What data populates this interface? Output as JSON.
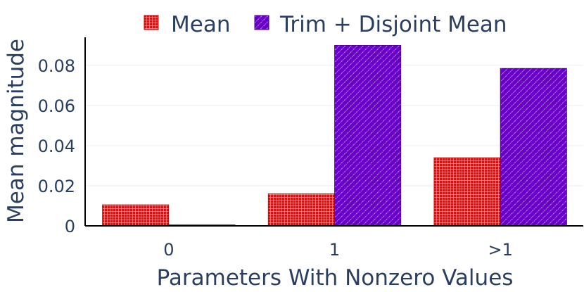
{
  "chart_data": {
    "type": "bar",
    "title": "",
    "xlabel": "Parameters With Nonzero Values",
    "ylabel": "Mean magnitude",
    "categories": [
      "0",
      "1",
      ">1"
    ],
    "series": [
      {
        "name": "Mean",
        "values": [
          0.0105,
          0.016,
          0.034
        ],
        "color": "#ff0000",
        "pattern": "grid"
      },
      {
        "name": "Trim + Disjoint Mean",
        "values": [
          0.0005,
          0.09,
          0.0785
        ],
        "color": "#6a00c8",
        "pattern": "diagonal"
      }
    ],
    "ylim": [
      0,
      0.094
    ],
    "yticks": [
      0,
      0.02,
      0.04,
      0.06,
      0.08
    ],
    "ytick_labels": [
      "0",
      "0.02",
      "0.04",
      "0.06",
      "0.08"
    ],
    "grid": true,
    "legend_position": "top"
  }
}
